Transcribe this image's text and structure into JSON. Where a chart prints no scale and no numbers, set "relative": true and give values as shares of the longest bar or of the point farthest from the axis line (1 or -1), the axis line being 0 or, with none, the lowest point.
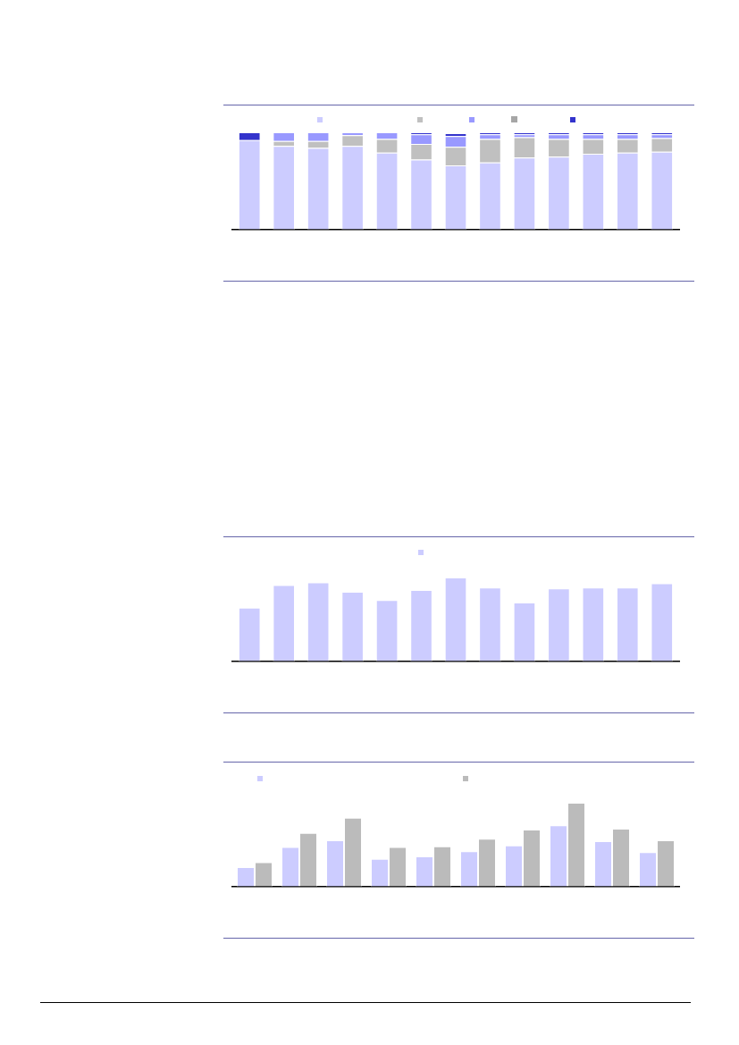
{
  "chart_data": [
    {
      "type": "bar",
      "stacked": true,
      "relative": true,
      "categories": [
        null,
        null,
        null,
        null,
        null,
        null,
        null,
        null,
        null,
        null,
        null,
        null,
        null
      ],
      "series": [
        {
          "color": "#ccccff",
          "values": [
            0.92,
            0.86,
            0.84,
            0.86,
            0.79,
            0.72,
            0.66,
            0.69,
            0.74,
            0.75,
            0.78,
            0.79,
            0.8
          ]
        },
        {
          "color": "#c0c0c0",
          "values": [
            0,
            0.05,
            0.07,
            0.11,
            0.14,
            0.16,
            0.19,
            0.24,
            0.21,
            0.18,
            0.15,
            0.14,
            0.14
          ]
        },
        {
          "color": "#9999ff",
          "values": [
            0,
            0.09,
            0.09,
            0.03,
            0.07,
            0.1,
            0.11,
            0.05,
            0.03,
            0.05,
            0.05,
            0.05,
            0.04
          ]
        },
        {
          "color": "#3333cc",
          "values": [
            0.08,
            0,
            0,
            0,
            0,
            0.02,
            0.03,
            0.02,
            0.02,
            0.02,
            0.02,
            0.02,
            0.02
          ]
        }
      ]
    },
    {
      "type": "bar",
      "relative": true,
      "categories": [
        null,
        null,
        null,
        null,
        null,
        null,
        null,
        null,
        null,
        null,
        null,
        null,
        null
      ],
      "series": [
        {
          "color": "#ccccff",
          "values": [
            0.64,
            0.91,
            0.94,
            0.83,
            0.73,
            0.85,
            1,
            0.88,
            0.7,
            0.87,
            0.88,
            0.88,
            0.93
          ]
        }
      ]
    },
    {
      "type": "bar",
      "relative": true,
      "categories": [
        null,
        null,
        null,
        null,
        null,
        null,
        null,
        null,
        null,
        null
      ],
      "series": [
        {
          "color": "#ccccff",
          "values": [
            0.23,
            0.47,
            0.55,
            0.33,
            0.36,
            0.42,
            0.49,
            0.73,
            0.54,
            0.41
          ]
        },
        {
          "color": "#bbbbbb",
          "values": [
            0.29,
            0.64,
            0.82,
            0.47,
            0.48,
            0.57,
            0.68,
            1,
            0.69,
            0.55
          ]
        }
      ]
    }
  ]
}
